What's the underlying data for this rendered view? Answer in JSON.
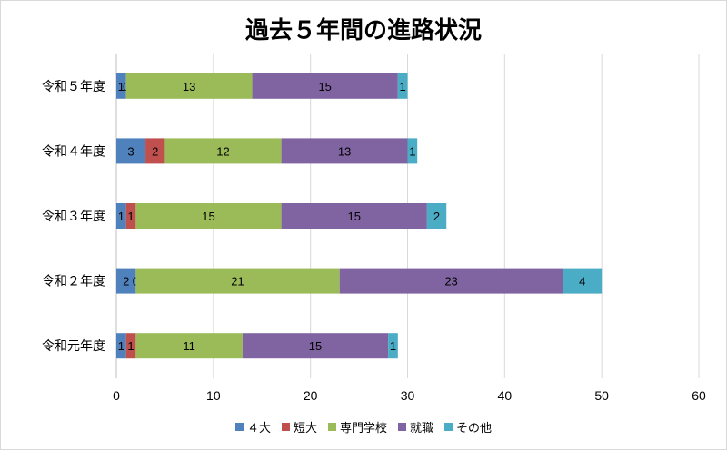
{
  "chart_data": {
    "type": "bar",
    "orientation": "horizontal",
    "stacked": true,
    "title": "過去５年間の進路状況",
    "categories": [
      "令和５年度",
      "令和４年度",
      "令和３年度",
      "令和２年度",
      "令和元年度"
    ],
    "series": [
      {
        "name": "４大",
        "color": "#4f81bd",
        "values": [
          1,
          3,
          1,
          2,
          1
        ]
      },
      {
        "name": "短大",
        "color": "#c0504d",
        "values": [
          0,
          2,
          1,
          0,
          1
        ]
      },
      {
        "name": "専門学校",
        "color": "#9bbb59",
        "values": [
          13,
          12,
          15,
          21,
          11
        ]
      },
      {
        "name": "就職",
        "color": "#8064a2",
        "values": [
          15,
          13,
          15,
          23,
          15
        ]
      },
      {
        "name": "その他",
        "color": "#4bacc6",
        "values": [
          1,
          1,
          2,
          4,
          1
        ]
      }
    ],
    "xlim": [
      0,
      60
    ],
    "xticks": [
      0,
      10,
      20,
      30,
      40,
      50,
      60
    ],
    "grid": true,
    "legend_position": "bottom"
  }
}
